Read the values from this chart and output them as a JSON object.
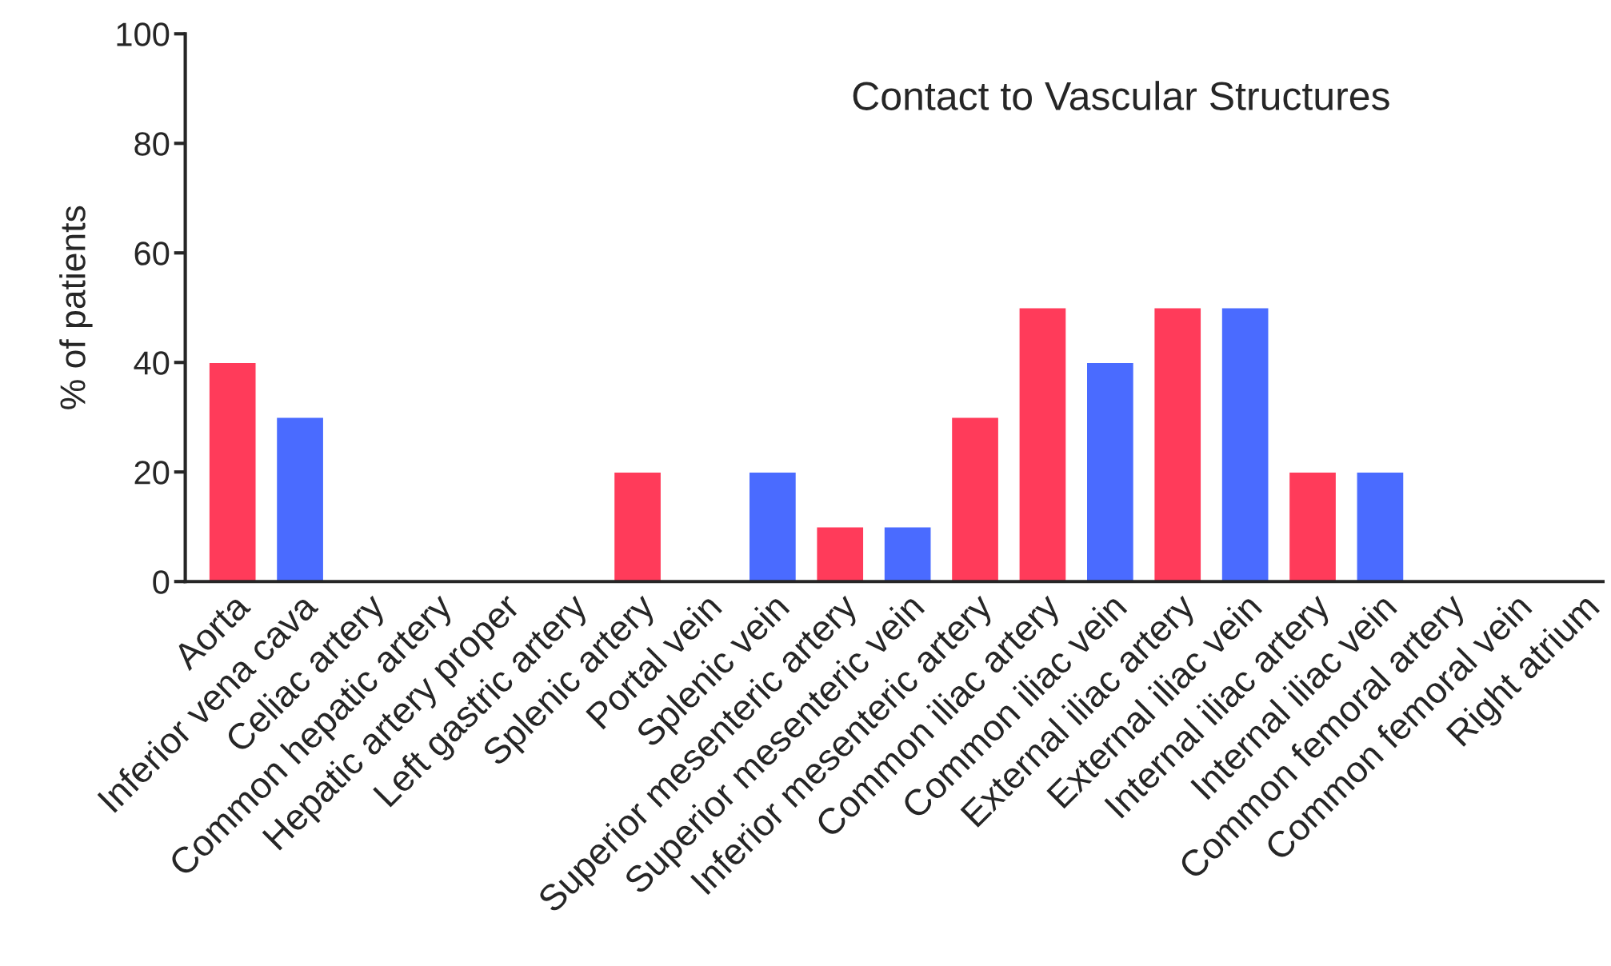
{
  "chart_data": {
    "type": "bar",
    "title": "Contact to Vascular Structures",
    "ylabel": "% of patients",
    "categories": [
      "Aorta",
      "Inferior vena cava",
      "Celiac artery",
      "Common hepatic artery",
      "Hepatic artery proper",
      "Left gastric artery",
      "Splenic artery",
      "Portal vein",
      "Splenic vein",
      "Superior mesenteric artery",
      "Superior mesenteric vein",
      "Inferior mesenteric artery",
      "Common iliac artery",
      "Common iliac vein",
      "External iliac artery",
      "External iliac vein",
      "Internal iliac artery",
      "Internal iliac vein",
      "Common femoral artery",
      "Common femoral vein",
      "Right atrium"
    ],
    "values": [
      40,
      30,
      0,
      0,
      0,
      0,
      20,
      0,
      20,
      10,
      10,
      30,
      50,
      40,
      50,
      50,
      20,
      20,
      0,
      0,
      0
    ],
    "colors": [
      "#ff3b5a",
      "#4a6bff",
      null,
      null,
      null,
      null,
      "#ff3b5a",
      null,
      "#4a6bff",
      "#ff3b5a",
      "#4a6bff",
      "#ff3b5a",
      "#ff3b5a",
      "#4a6bff",
      "#ff3b5a",
      "#4a6bff",
      "#ff3b5a",
      "#4a6bff",
      null,
      null,
      null
    ],
    "ylim": [
      0,
      100
    ],
    "yticks": [
      0,
      20,
      40,
      60,
      80,
      100
    ],
    "grid": false,
    "legend": false
  }
}
